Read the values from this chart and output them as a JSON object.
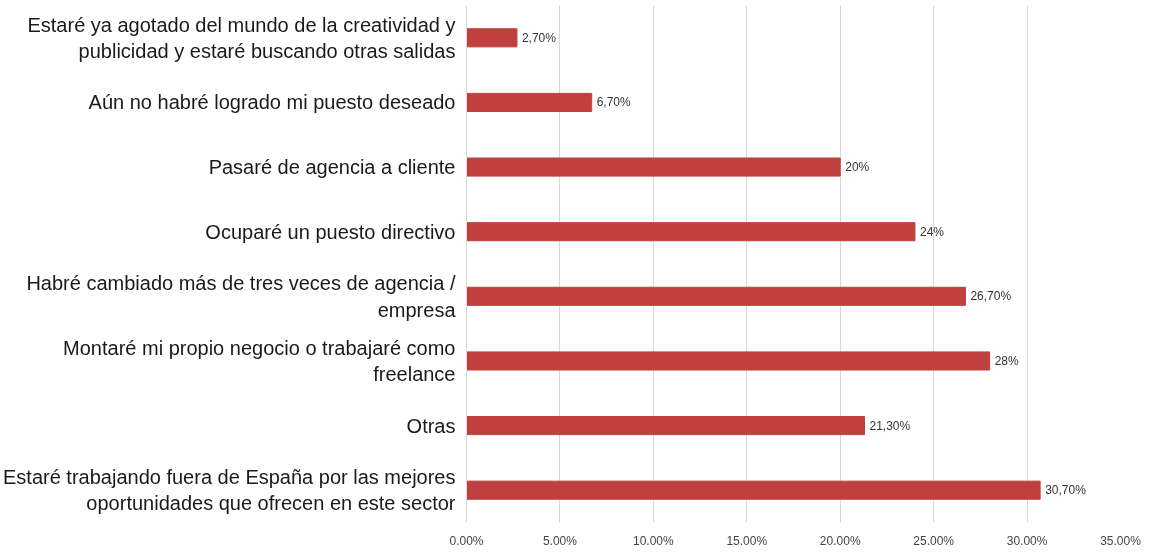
{
  "chart_data": {
    "type": "bar",
    "orientation": "horizontal",
    "categories": [
      "Estaré ya agotado del mundo de la creatividad y publicidad y estaré buscando otras salidas",
      "Aún no habré logrado mi puesto deseado",
      "Pasaré de agencia a cliente",
      "Ocuparé un puesto directivo",
      "Habré cambiado más de tres veces de agencia / empresa",
      "Montaré mi propio negocio o trabajaré como freelance",
      "Otras",
      "Estaré trabajando fuera de España por las mejores oportunidades que ofrecen en este sector"
    ],
    "values": [
      2.7,
      6.7,
      20,
      24,
      26.7,
      28,
      21.3,
      30.7
    ],
    "value_labels": [
      "2,70%",
      "6,70%",
      "20%",
      "24%",
      "26,70%",
      "28%",
      "21,30%",
      "30,70%"
    ],
    "color": "#c0403f",
    "xlim": [
      0,
      35
    ],
    "xticks": [
      {
        "value": 0,
        "label": "0.00%"
      },
      {
        "value": 5,
        "label": "5.00%"
      },
      {
        "value": 10,
        "label": "10.00%"
      },
      {
        "value": 15,
        "label": "15.00%"
      },
      {
        "value": 20,
        "label": "20.00%"
      },
      {
        "value": 25,
        "label": "25.00%"
      },
      {
        "value": 30,
        "label": "30.00%"
      },
      {
        "value": 35,
        "label": "35.00%"
      }
    ],
    "grid": "x"
  }
}
